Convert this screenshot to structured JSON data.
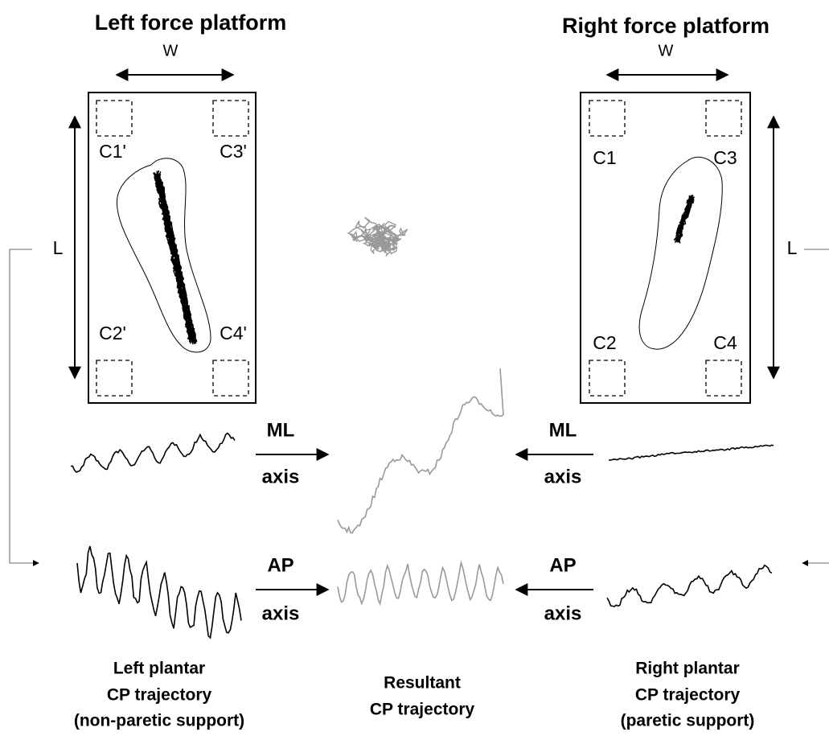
{
  "left_platform": {
    "title": "Left force platform",
    "width_label": "W",
    "length_label": "L",
    "corners": [
      "C1'",
      "C3'",
      "C2'",
      "C4'"
    ]
  },
  "right_platform": {
    "title": "Right force platform",
    "width_label": "W",
    "length_label": "L",
    "corners": [
      "C1",
      "C3",
      "C2",
      "C4"
    ]
  },
  "arrows": {
    "left_ml": {
      "label": "ML",
      "sub": "axis"
    },
    "right_ml": {
      "label": "ML",
      "sub": "axis"
    },
    "left_ap": {
      "label": "AP",
      "sub": "axis"
    },
    "right_ap": {
      "label": "AP",
      "sub": "axis"
    }
  },
  "captions": {
    "left": [
      "Left plantar",
      "CP trajectory",
      "(non-paretic support)"
    ],
    "center": [
      "Resultant",
      "CP trajectory"
    ],
    "right": [
      "Right plantar",
      "CP trajectory",
      "(paretic support)"
    ]
  }
}
